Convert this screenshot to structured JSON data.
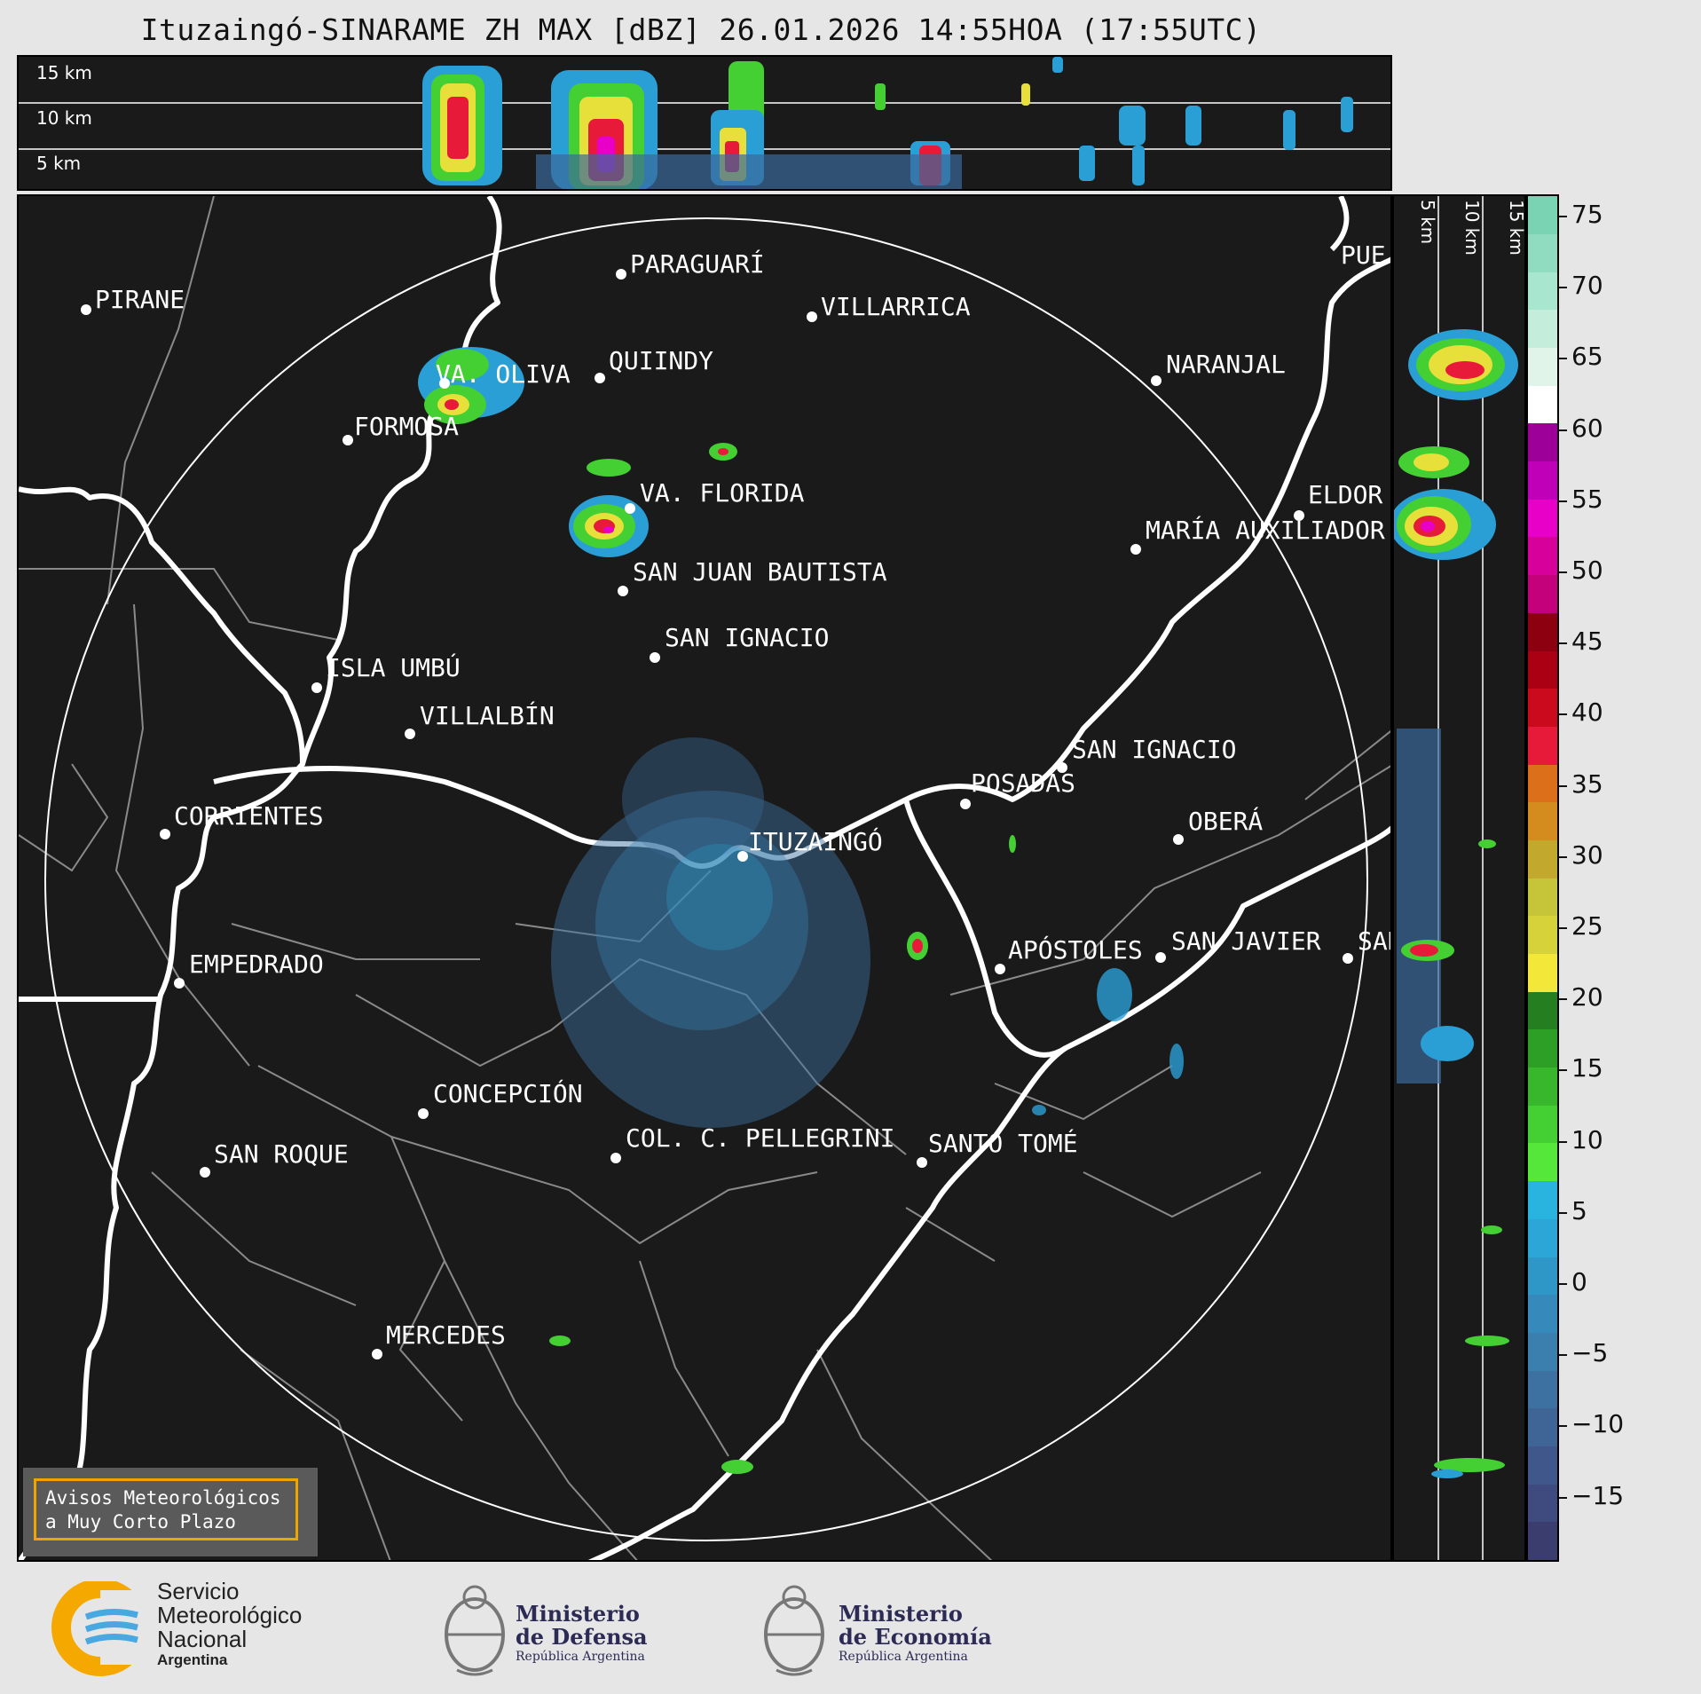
{
  "title": "Ituzaingó-SINARAME ZH MAX [dBZ] 26.01.2026 14:55HOA (17:55UTC)",
  "top_panel": {
    "height_labels": [
      "15 km",
      "10 km",
      "5 km"
    ]
  },
  "side_panel": {
    "height_labels": [
      "5 km",
      "10 km",
      "15 km"
    ]
  },
  "colorbar": {
    "unit": "dBZ",
    "ticks": [
      "75",
      "70",
      "65",
      "60",
      "55",
      "50",
      "45",
      "40",
      "35",
      "30",
      "25",
      "20",
      "15",
      "10",
      "5",
      "0",
      "−5",
      "−10",
      "−15"
    ],
    "colors": [
      "#3b3d6e",
      "#3f4a7e",
      "#40578c",
      "#3f6597",
      "#3c71a1",
      "#3a7fae",
      "#3589bb",
      "#2f97c8",
      "#2ba6d6",
      "#29b4df",
      "#55e83a",
      "#44cf33",
      "#38b72c",
      "#2e9f26",
      "#257f20",
      "#f3e83a",
      "#d6d33a",
      "#c6c53a",
      "#c2a82d",
      "#d48c1e",
      "#dc6f1a",
      "#e81a3a",
      "#cc0a1e",
      "#ab0014",
      "#8c0010",
      "#c4007a",
      "#d8009a",
      "#e800c8",
      "#c000b8",
      "#9c0098",
      "#ffffff",
      "#e0f4ea",
      "#c4eddc",
      "#a8e6cf",
      "#8fdcc0",
      "#7ad3b2"
    ]
  },
  "cities": [
    {
      "name": "PIRANE"
    },
    {
      "name": "PARAGUARÍ"
    },
    {
      "name": "VILLARRICA"
    },
    {
      "name": "QUIINDY"
    },
    {
      "name": "VA. OLIVA"
    },
    {
      "name": "FORMOSA"
    },
    {
      "name": "NARANJAL"
    },
    {
      "name": "VA. FLORIDA"
    },
    {
      "name": "ELDOR"
    },
    {
      "name": "MARÍA AUXILIADOR"
    },
    {
      "name": "SAN JUAN BAUTISTA"
    },
    {
      "name": "SAN IGNACIO"
    },
    {
      "name": "ISLA UMBÚ"
    },
    {
      "name": "VILLALBÍN"
    },
    {
      "name": "SAN IGNACIO"
    },
    {
      "name": "POSADAS"
    },
    {
      "name": "CORRIENTES"
    },
    {
      "name": "ITUZAINGÓ"
    },
    {
      "name": "OBERÁ"
    },
    {
      "name": "APÓSTOLES"
    },
    {
      "name": "SAN JAVIER"
    },
    {
      "name": "SAN"
    },
    {
      "name": "EMPEDRADO"
    },
    {
      "name": "CONCEPCIÓN"
    },
    {
      "name": "COL. C. PELLEGRINI"
    },
    {
      "name": "SANTO TOMÉ"
    },
    {
      "name": "SAN ROQUE"
    },
    {
      "name": "MERCEDES"
    },
    {
      "name": "PUE"
    }
  ],
  "notice": {
    "line1": "Avisos Meteorológicos",
    "line2": "a Muy Corto Plazo"
  },
  "logos": {
    "smn": {
      "line1": "Servicio",
      "line2": "Meteorológico",
      "line3": "Nacional",
      "line4": "Argentina"
    },
    "defensa": {
      "line1": "Ministerio",
      "line2": "de Defensa",
      "line3": "República Argentina"
    },
    "economia": {
      "line1": "Ministerio",
      "line2": "de Economía",
      "line3": "República Argentina"
    }
  }
}
